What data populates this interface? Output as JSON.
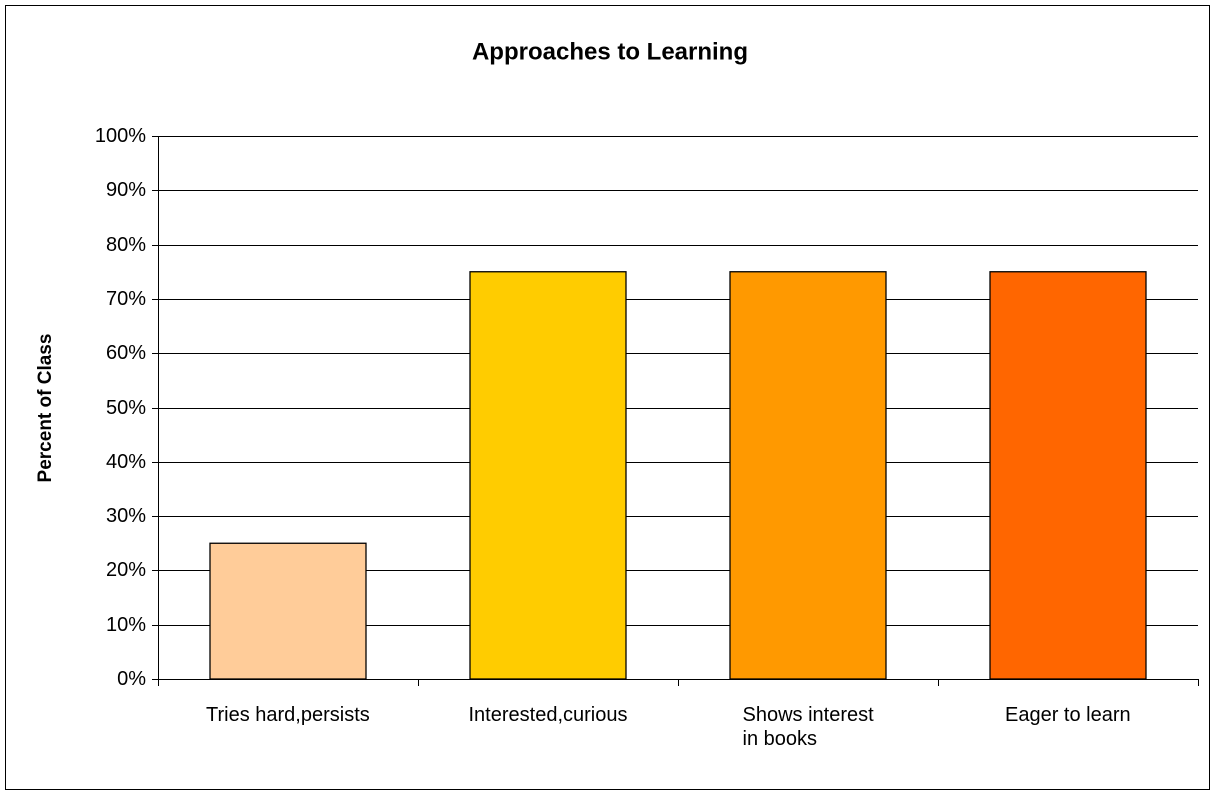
{
  "chart_data": {
    "type": "bar",
    "title": "Approaches to Learning",
    "y_label": "Percent of Class",
    "categories": [
      "Tries hard,persists",
      "Interested,curious",
      "Shows interest\nin books",
      "Eager to learn"
    ],
    "values": [
      25,
      75,
      75,
      75
    ],
    "colors": [
      "#FFCC99",
      "#FFCC00",
      "#FF9900",
      "#FF6600"
    ],
    "ylim": [
      0,
      100
    ],
    "yticks": [
      {
        "value": 0,
        "label": "0%"
      },
      {
        "value": 10,
        "label": "10%"
      },
      {
        "value": 20,
        "label": "20%"
      },
      {
        "value": 30,
        "label": "30%"
      },
      {
        "value": 40,
        "label": "40%"
      },
      {
        "value": 50,
        "label": "50%"
      },
      {
        "value": 60,
        "label": "60%"
      },
      {
        "value": 70,
        "label": "70%"
      },
      {
        "value": 80,
        "label": "80%"
      },
      {
        "value": 90,
        "label": "90%"
      },
      {
        "value": 100,
        "label": "100%"
      }
    ],
    "grid": true
  }
}
